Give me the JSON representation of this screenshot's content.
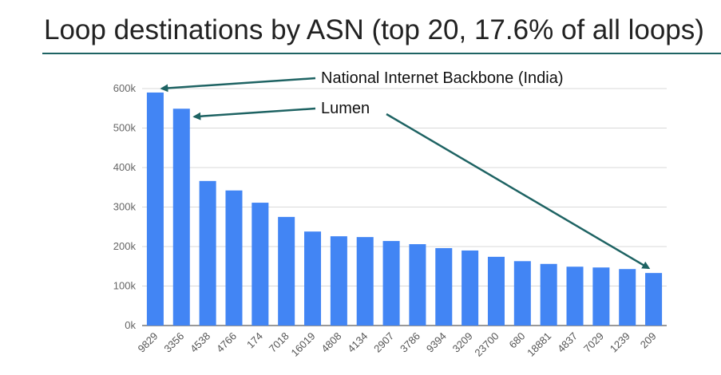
{
  "slide": {
    "title": "Loop destinations by ASN (top 20, 17.6% of all loops)"
  },
  "colors": {
    "bar": "#4285f4",
    "arrow": "#1e6363",
    "rule": "#1e6363",
    "grid": "#d9d9d9",
    "axis": "#333333"
  },
  "chart_data": {
    "type": "bar",
    "title": "",
    "xlabel": "",
    "ylabel": "",
    "ylim": [
      0,
      600000
    ],
    "yticks": [
      0,
      100000,
      200000,
      300000,
      400000,
      500000,
      600000
    ],
    "ytick_labels": [
      "0k",
      "100k",
      "200k",
      "300k",
      "400k",
      "500k",
      "600k"
    ],
    "grid": true,
    "categories": [
      "9829",
      "3356",
      "4538",
      "4766",
      "174",
      "7018",
      "16019",
      "4808",
      "4134",
      "2907",
      "3786",
      "9394",
      "3209",
      "23700",
      "680",
      "18881",
      "4837",
      "7029",
      "1239",
      "209"
    ],
    "values": [
      590000,
      549000,
      366000,
      342000,
      311000,
      275000,
      238000,
      226000,
      224000,
      214000,
      206000,
      196000,
      190000,
      174000,
      163000,
      156000,
      149000,
      147000,
      143000,
      133000
    ],
    "annotations": [
      {
        "text": "National Internet Backbone (India)",
        "target_category": "9829"
      },
      {
        "text": "Lumen",
        "target_category": "3356"
      },
      {
        "text": "Lumen",
        "target_category": "209"
      }
    ]
  }
}
